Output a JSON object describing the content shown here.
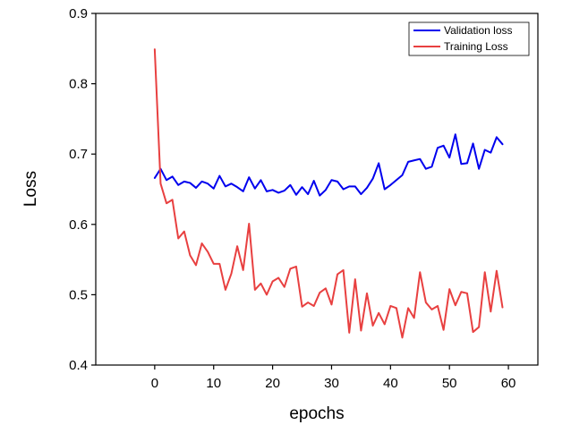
{
  "chart_data": {
    "type": "line",
    "xlabel": "epochs",
    "ylabel": "Loss",
    "xlim": [
      -10,
      65
    ],
    "ylim": [
      0.4,
      0.9
    ],
    "xticks": [
      0,
      10,
      20,
      30,
      40,
      50,
      60
    ],
    "yticks": [
      0.4,
      0.5,
      0.6,
      0.7,
      0.8,
      0.9
    ],
    "xtick_labels": [
      "0",
      "10",
      "20",
      "30",
      "40",
      "50",
      "60"
    ],
    "ytick_labels": [
      "0.4",
      "0.5",
      "0.6",
      "0.7",
      "0.8",
      "0.9"
    ],
    "grid": false,
    "legend": {
      "position": "top-right",
      "entries": [
        "Validation loss",
        "Training Loss"
      ]
    },
    "x": [
      0,
      1,
      2,
      3,
      4,
      5,
      6,
      7,
      8,
      9,
      10,
      11,
      12,
      13,
      14,
      15,
      16,
      17,
      18,
      19,
      20,
      21,
      22,
      23,
      24,
      25,
      26,
      27,
      28,
      29,
      30,
      31,
      32,
      33,
      34,
      35,
      36,
      37,
      38,
      39,
      40,
      41,
      42,
      43,
      44,
      45,
      46,
      47,
      48,
      49,
      50,
      51,
      52,
      53,
      54,
      55,
      56,
      57,
      58,
      59
    ],
    "series": [
      {
        "name": "Validation loss",
        "color": "#0000ee",
        "values": [
          0.666,
          0.679,
          0.663,
          0.668,
          0.656,
          0.661,
          0.659,
          0.652,
          0.661,
          0.658,
          0.651,
          0.669,
          0.654,
          0.658,
          0.653,
          0.647,
          0.667,
          0.651,
          0.663,
          0.647,
          0.649,
          0.645,
          0.648,
          0.656,
          0.642,
          0.653,
          0.643,
          0.662,
          0.641,
          0.649,
          0.663,
          0.661,
          0.65,
          0.654,
          0.654,
          0.643,
          0.652,
          0.665,
          0.687,
          0.65,
          0.656,
          0.663,
          0.67,
          0.689,
          0.691,
          0.693,
          0.679,
          0.682,
          0.709,
          0.712,
          0.695,
          0.728,
          0.686,
          0.687,
          0.715,
          0.679,
          0.706,
          0.702,
          0.724,
          0.714
        ]
      },
      {
        "name": "Training Loss",
        "color": "#e84040",
        "values": [
          0.849,
          0.658,
          0.63,
          0.635,
          0.58,
          0.59,
          0.556,
          0.542,
          0.573,
          0.561,
          0.544,
          0.544,
          0.507,
          0.53,
          0.569,
          0.535,
          0.601,
          0.507,
          0.516,
          0.5,
          0.519,
          0.524,
          0.511,
          0.537,
          0.54,
          0.483,
          0.489,
          0.484,
          0.503,
          0.509,
          0.486,
          0.529,
          0.535,
          0.446,
          0.522,
          0.449,
          0.502,
          0.456,
          0.474,
          0.458,
          0.484,
          0.481,
          0.439,
          0.481,
          0.467,
          0.532,
          0.489,
          0.479,
          0.484,
          0.45,
          0.508,
          0.485,
          0.504,
          0.502,
          0.447,
          0.454,
          0.532,
          0.476,
          0.534,
          0.482
        ]
      }
    ]
  }
}
